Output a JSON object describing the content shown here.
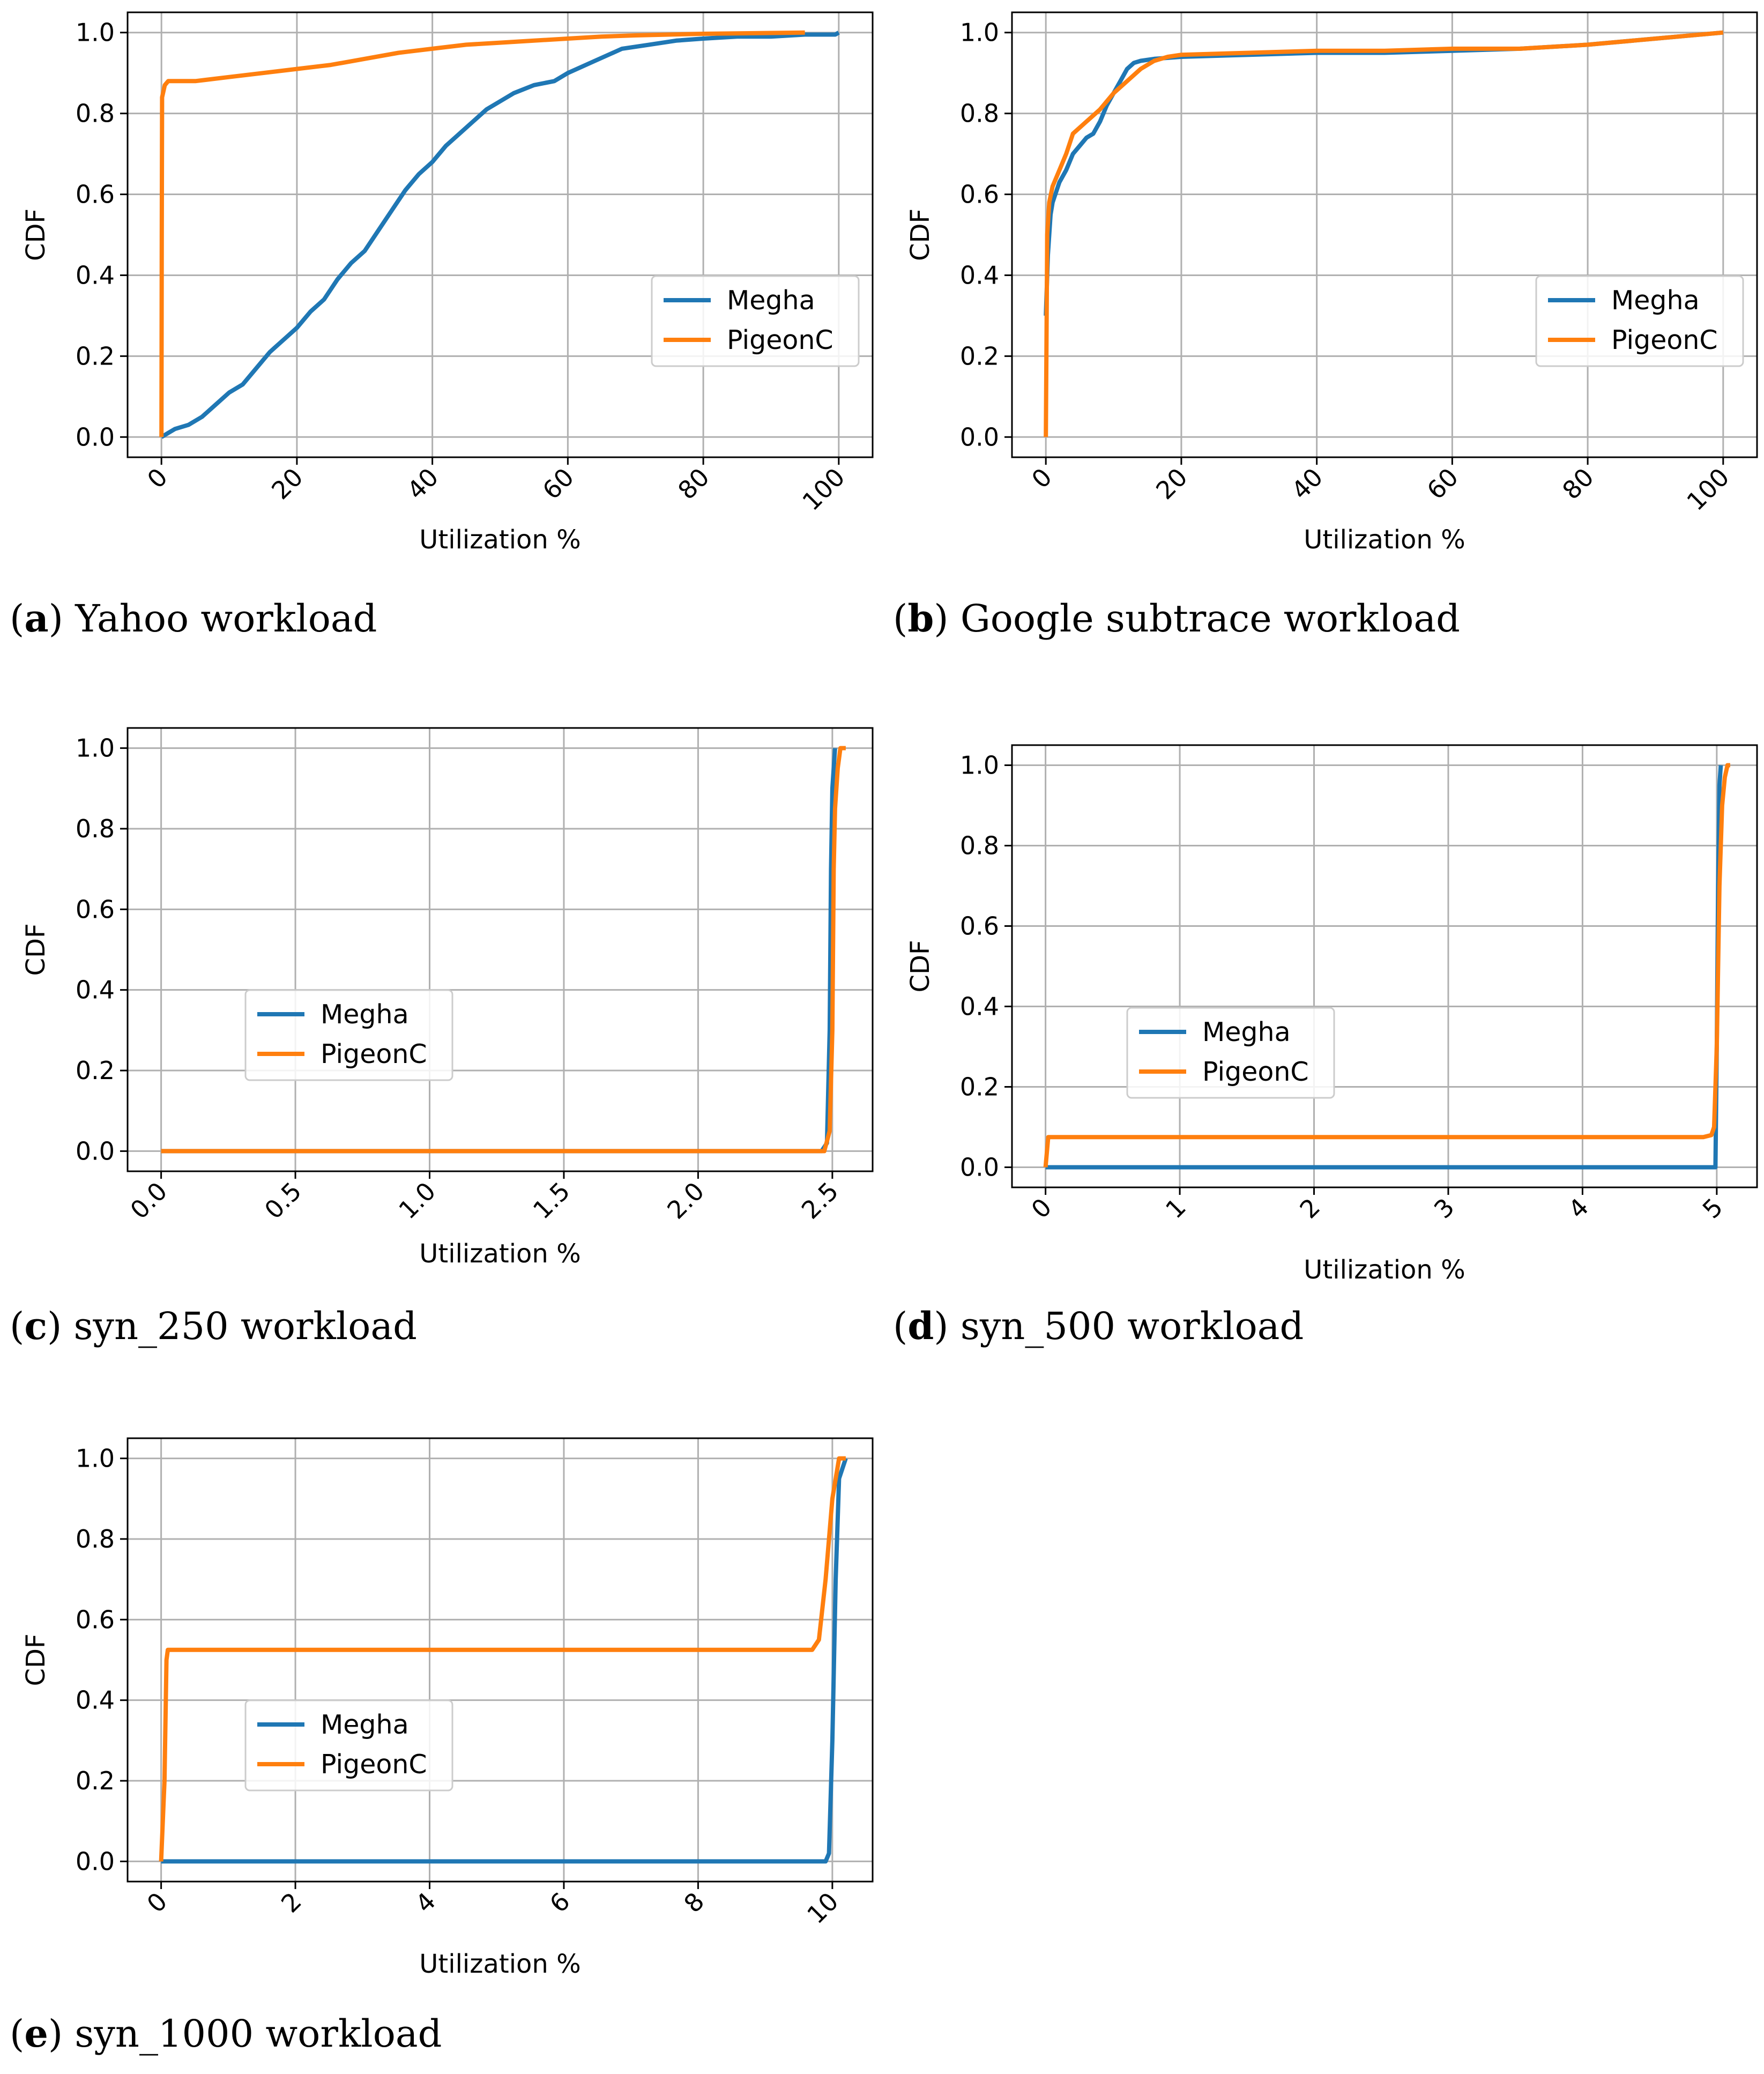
{
  "colors": {
    "megha": "#1f77b4",
    "pigeonc": "#ff7f0e",
    "grid": "#b0b0b0",
    "axis": "#000000"
  },
  "chart_data": [
    {
      "id": "a",
      "type": "line",
      "caption": {
        "letter": "a",
        "text": "Yahoo workload"
      },
      "xlabel": "Utilization %",
      "ylabel": "CDF",
      "xlim": [
        -5,
        105
      ],
      "ylim": [
        -0.05,
        1.05
      ],
      "xticks": [
        0,
        20,
        40,
        60,
        80,
        100
      ],
      "xtick_labels": [
        "0",
        "20",
        "40",
        "60",
        "80",
        "100"
      ],
      "yticks": [
        0,
        0.2,
        0.4,
        0.6,
        0.8,
        1.0
      ],
      "ytick_labels": [
        "0.0",
        "0.2",
        "0.4",
        "0.6",
        "0.8",
        "1.0"
      ],
      "grid": true,
      "legend_position": "center-right",
      "series": [
        {
          "name": "Megha",
          "color": "#1f77b4",
          "points": [
            [
              0,
              0
            ],
            [
              0.5,
              0.005
            ],
            [
              1,
              0.01
            ],
            [
              2,
              0.02
            ],
            [
              4,
              0.03
            ],
            [
              6,
              0.05
            ],
            [
              8,
              0.08
            ],
            [
              10,
              0.11
            ],
            [
              12,
              0.13
            ],
            [
              14,
              0.17
            ],
            [
              16,
              0.21
            ],
            [
              18,
              0.24
            ],
            [
              20,
              0.27
            ],
            [
              22,
              0.31
            ],
            [
              24,
              0.34
            ],
            [
              26,
              0.39
            ],
            [
              28,
              0.43
            ],
            [
              30,
              0.46
            ],
            [
              32,
              0.51
            ],
            [
              34,
              0.56
            ],
            [
              36,
              0.61
            ],
            [
              38,
              0.65
            ],
            [
              40,
              0.68
            ],
            [
              42,
              0.72
            ],
            [
              44,
              0.75
            ],
            [
              46,
              0.78
            ],
            [
              48,
              0.81
            ],
            [
              50,
              0.83
            ],
            [
              52,
              0.85
            ],
            [
              55,
              0.87
            ],
            [
              58,
              0.88
            ],
            [
              60,
              0.9
            ],
            [
              64,
              0.93
            ],
            [
              68,
              0.96
            ],
            [
              72,
              0.97
            ],
            [
              76,
              0.98
            ],
            [
              80,
              0.985
            ],
            [
              85,
              0.99
            ],
            [
              90,
              0.99
            ],
            [
              95,
              0.995
            ],
            [
              99.5,
              0.995
            ],
            [
              100,
              1.0
            ]
          ]
        },
        {
          "name": "PigeonC",
          "color": "#ff7f0e",
          "points": [
            [
              0,
              0
            ],
            [
              0.05,
              0.5
            ],
            [
              0.1,
              0.84
            ],
            [
              0.5,
              0.87
            ],
            [
              1,
              0.88
            ],
            [
              5,
              0.88
            ],
            [
              10,
              0.89
            ],
            [
              15,
              0.9
            ],
            [
              20,
              0.91
            ],
            [
              25,
              0.92
            ],
            [
              30,
              0.935
            ],
            [
              35,
              0.95
            ],
            [
              40,
              0.96
            ],
            [
              45,
              0.97
            ],
            [
              50,
              0.975
            ],
            [
              55,
              0.98
            ],
            [
              60,
              0.985
            ],
            [
              65,
              0.99
            ],
            [
              70,
              0.993
            ],
            [
              75,
              0.995
            ],
            [
              80,
              0.997
            ],
            [
              85,
              0.998
            ],
            [
              90,
              0.999
            ],
            [
              95,
              1.0
            ]
          ]
        }
      ]
    },
    {
      "id": "b",
      "type": "line",
      "caption": {
        "letter": "b",
        "text": "Google subtrace workload"
      },
      "xlabel": "Utilization %",
      "ylabel": "CDF",
      "xlim": [
        -5,
        105
      ],
      "ylim": [
        -0.05,
        1.05
      ],
      "xticks": [
        0,
        20,
        40,
        60,
        80,
        100
      ],
      "xtick_labels": [
        "0",
        "20",
        "40",
        "60",
        "80",
        "100"
      ],
      "yticks": [
        0,
        0.2,
        0.4,
        0.6,
        0.8,
        1.0
      ],
      "ytick_labels": [
        "0.0",
        "0.2",
        "0.4",
        "0.6",
        "0.8",
        "1.0"
      ],
      "grid": true,
      "legend_position": "center-right",
      "series": [
        {
          "name": "Megha",
          "color": "#1f77b4",
          "points": [
            [
              0,
              0.3
            ],
            [
              0.3,
              0.45
            ],
            [
              0.7,
              0.55
            ],
            [
              1,
              0.58
            ],
            [
              2,
              0.63
            ],
            [
              3,
              0.66
            ],
            [
              4,
              0.7
            ],
            [
              5,
              0.72
            ],
            [
              6,
              0.74
            ],
            [
              7,
              0.75
            ],
            [
              8,
              0.78
            ],
            [
              9,
              0.82
            ],
            [
              10,
              0.85
            ],
            [
              11,
              0.88
            ],
            [
              12,
              0.91
            ],
            [
              13,
              0.925
            ],
            [
              14,
              0.93
            ],
            [
              16,
              0.935
            ],
            [
              20,
              0.94
            ],
            [
              30,
              0.945
            ],
            [
              40,
              0.95
            ],
            [
              50,
              0.95
            ],
            [
              60,
              0.955
            ],
            [
              70,
              0.96
            ],
            [
              80,
              0.97
            ],
            [
              90,
              0.985
            ],
            [
              100,
              1.0
            ]
          ]
        },
        {
          "name": "PigeonC",
          "color": "#ff7f0e",
          "points": [
            [
              0,
              0
            ],
            [
              0.2,
              0.5
            ],
            [
              0.5,
              0.58
            ],
            [
              1,
              0.62
            ],
            [
              2,
              0.66
            ],
            [
              3,
              0.7
            ],
            [
              4,
              0.75
            ],
            [
              6,
              0.78
            ],
            [
              8,
              0.81
            ],
            [
              10,
              0.85
            ],
            [
              12,
              0.88
            ],
            [
              14,
              0.91
            ],
            [
              16,
              0.93
            ],
            [
              18,
              0.94
            ],
            [
              20,
              0.945
            ],
            [
              30,
              0.95
            ],
            [
              40,
              0.955
            ],
            [
              50,
              0.955
            ],
            [
              60,
              0.96
            ],
            [
              70,
              0.96
            ],
            [
              80,
              0.97
            ],
            [
              90,
              0.985
            ],
            [
              100,
              1.0
            ]
          ]
        }
      ]
    },
    {
      "id": "c",
      "type": "line",
      "caption": {
        "letter": "c",
        "text": "syn_250 workload"
      },
      "xlabel": "Utilization %",
      "ylabel": "CDF",
      "xlim": [
        -0.125,
        2.65
      ],
      "ylim": [
        -0.05,
        1.05
      ],
      "xticks": [
        0,
        0.5,
        1.0,
        1.5,
        2.0,
        2.5
      ],
      "xtick_labels": [
        "0.0",
        "0.5",
        "1.0",
        "1.5",
        "2.0",
        "2.5"
      ],
      "yticks": [
        0,
        0.2,
        0.4,
        0.6,
        0.8,
        1.0
      ],
      "ytick_labels": [
        "0.0",
        "0.2",
        "0.4",
        "0.6",
        "0.8",
        "1.0"
      ],
      "grid": true,
      "legend_position": "center-left",
      "series": [
        {
          "name": "Megha",
          "color": "#1f77b4",
          "points": [
            [
              0,
              0
            ],
            [
              2.46,
              0.0
            ],
            [
              2.48,
              0.02
            ],
            [
              2.49,
              0.3
            ],
            [
              2.495,
              0.7
            ],
            [
              2.5,
              0.9
            ],
            [
              2.51,
              1.0
            ]
          ]
        },
        {
          "name": "PigeonC",
          "color": "#ff7f0e",
          "points": [
            [
              0,
              0
            ],
            [
              2.47,
              0.0
            ],
            [
              2.49,
              0.05
            ],
            [
              2.5,
              0.3
            ],
            [
              2.505,
              0.7
            ],
            [
              2.51,
              0.85
            ],
            [
              2.52,
              0.95
            ],
            [
              2.53,
              1.0
            ],
            [
              2.55,
              1.0
            ]
          ]
        }
      ]
    },
    {
      "id": "d",
      "type": "line",
      "caption": {
        "letter": "d",
        "text": "syn_500 workload"
      },
      "xlabel": "Utilization %",
      "ylabel": "CDF",
      "xlim": [
        -0.25,
        5.3
      ],
      "ylim": [
        -0.05,
        1.05
      ],
      "xticks": [
        0,
        1,
        2,
        3,
        4,
        5
      ],
      "xtick_labels": [
        "0",
        "1",
        "2",
        "3",
        "4",
        "5"
      ],
      "yticks": [
        0,
        0.2,
        0.4,
        0.6,
        0.8,
        1.0
      ],
      "ytick_labels": [
        "0.0",
        "0.2",
        "0.4",
        "0.6",
        "0.8",
        "1.0"
      ],
      "grid": true,
      "legend_position": "center-left",
      "series": [
        {
          "name": "Megha",
          "color": "#1f77b4",
          "points": [
            [
              0,
              0
            ],
            [
              4.99,
              0.0
            ],
            [
              5.0,
              0.3
            ],
            [
              5.01,
              0.7
            ],
            [
              5.02,
              0.95
            ],
            [
              5.03,
              1.0
            ]
          ]
        },
        {
          "name": "PigeonC",
          "color": "#ff7f0e",
          "points": [
            [
              0,
              0
            ],
            [
              0.02,
              0.075
            ],
            [
              4.9,
              0.075
            ],
            [
              4.96,
              0.08
            ],
            [
              4.98,
              0.1
            ],
            [
              5.0,
              0.3
            ],
            [
              5.02,
              0.7
            ],
            [
              5.04,
              0.9
            ],
            [
              5.06,
              0.97
            ],
            [
              5.08,
              1.0
            ],
            [
              5.1,
              1.0
            ]
          ]
        }
      ]
    },
    {
      "id": "e",
      "type": "line",
      "caption": {
        "letter": "e",
        "text": "syn_1000 workload"
      },
      "xlabel": "Utilization %",
      "ylabel": "CDF",
      "xlim": [
        -0.5,
        10.6
      ],
      "ylim": [
        -0.05,
        1.05
      ],
      "xticks": [
        0,
        2,
        4,
        6,
        8,
        10
      ],
      "xtick_labels": [
        "0",
        "2",
        "4",
        "6",
        "8",
        "10"
      ],
      "yticks": [
        0,
        0.2,
        0.4,
        0.6,
        0.8,
        1.0
      ],
      "ytick_labels": [
        "0.0",
        "0.2",
        "0.4",
        "0.6",
        "0.8",
        "1.0"
      ],
      "grid": true,
      "legend_position": "center-left",
      "series": [
        {
          "name": "Megha",
          "color": "#1f77b4",
          "points": [
            [
              0,
              0
            ],
            [
              9.9,
              0.0
            ],
            [
              9.95,
              0.02
            ],
            [
              10.0,
              0.3
            ],
            [
              10.05,
              0.7
            ],
            [
              10.1,
              0.95
            ],
            [
              10.2,
              1.0
            ]
          ]
        },
        {
          "name": "PigeonC",
          "color": "#ff7f0e",
          "points": [
            [
              0,
              0
            ],
            [
              0.05,
              0.2
            ],
            [
              0.08,
              0.5
            ],
            [
              0.1,
              0.525
            ],
            [
              9.7,
              0.525
            ],
            [
              9.8,
              0.55
            ],
            [
              9.9,
              0.7
            ],
            [
              10.0,
              0.9
            ],
            [
              10.1,
              1.0
            ],
            [
              10.2,
              1.0
            ]
          ]
        }
      ]
    }
  ]
}
